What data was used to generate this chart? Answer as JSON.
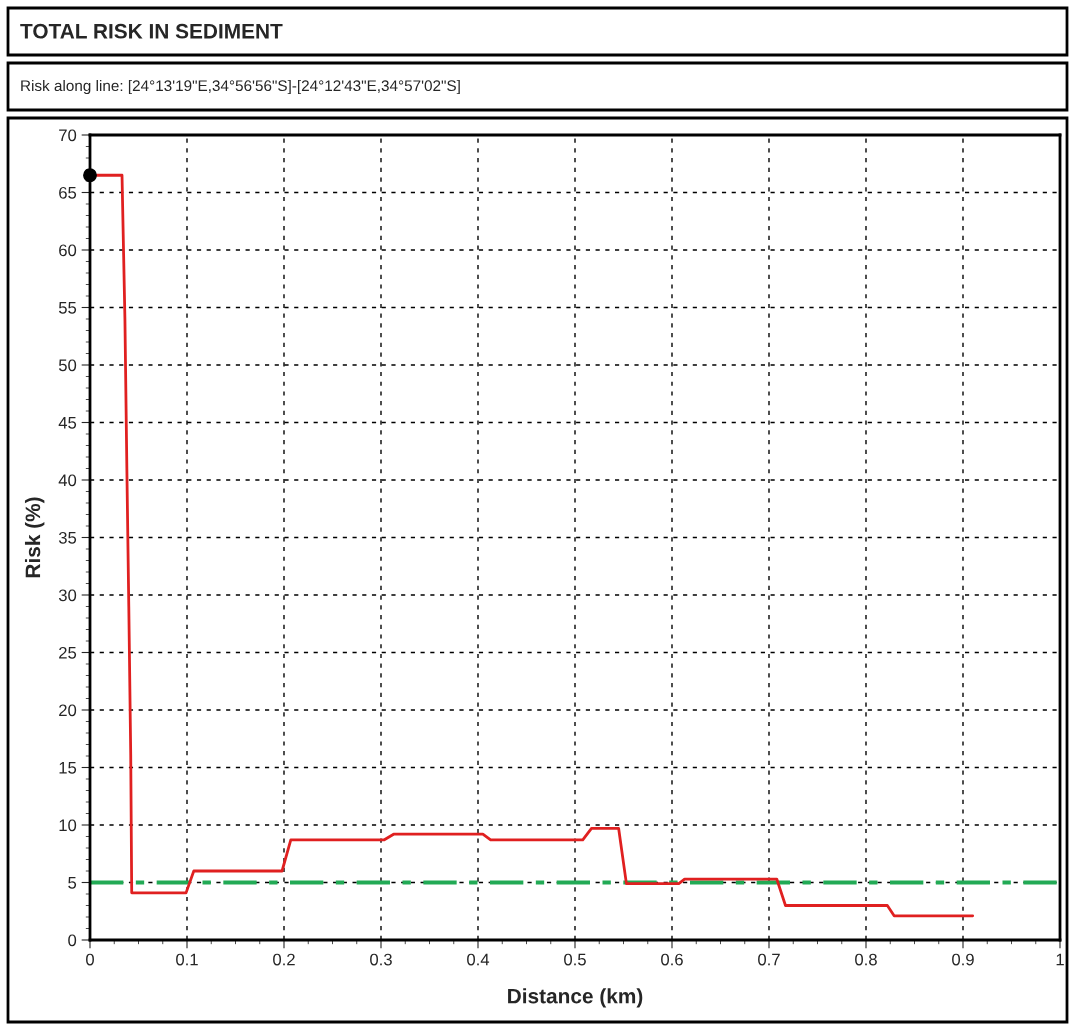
{
  "chart_data": {
    "type": "line",
    "title": "TOTAL RISK IN SEDIMENT",
    "subtitle": "Risk along line: [24°13'19\"E,34°56'56\"S]-[24°12'43\"E,34°57'02\"S]",
    "xlabel": "Distance (km)",
    "ylabel": "Risk (%)",
    "series": [
      {
        "color": "#e02020",
        "x": [
          0,
          0.033,
          0.036,
          0.038,
          0.04,
          0.042,
          0.043,
          0.099,
          0.107,
          0.198,
          0.207,
          0.303,
          0.313,
          0.405,
          0.413,
          0.508,
          0.517,
          0.545,
          0.553,
          0.607,
          0.613,
          0.708,
          0.717,
          0.822,
          0.829,
          0.91
        ],
        "values": [
          66.5,
          66.5,
          54,
          41,
          29,
          16,
          4.1,
          4.1,
          6,
          6,
          8.7,
          8.7,
          9.2,
          9.2,
          8.7,
          8.7,
          9.7,
          9.7,
          4.9,
          4.9,
          5.3,
          5.3,
          3.0,
          3.0,
          2.1,
          2.1
        ]
      },
      {
        "type": "scatter",
        "color": "#000000",
        "x": [
          0
        ],
        "values": [
          66.5
        ]
      }
    ],
    "ref_lines": [
      {
        "axis": "y",
        "value": 5,
        "color": "#22aa55",
        "line_style": "dashed"
      }
    ],
    "xlim": [
      0,
      1
    ],
    "xticks": [
      0,
      0.1,
      0.2,
      0.3,
      0.4,
      0.5,
      0.6,
      0.7,
      0.8,
      0.9,
      1
    ],
    "ylim": [
      0,
      70
    ],
    "yticks": [
      0,
      5,
      10,
      15,
      20,
      25,
      30,
      35,
      40,
      45,
      50,
      55,
      60,
      65,
      70
    ],
    "grid": true,
    "legend": false
  }
}
